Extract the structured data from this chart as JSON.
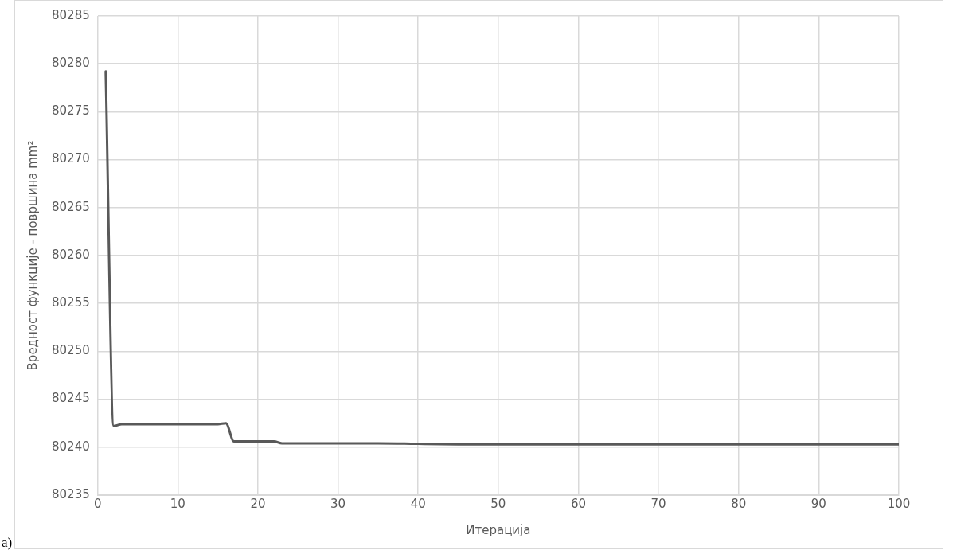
{
  "chart_data": {
    "type": "line",
    "xlabel": "Итерација",
    "ylabel": "Вредност функције - површина mm²",
    "annotations": [
      "a)"
    ],
    "x": [
      1,
      2,
      3,
      15,
      16,
      17,
      18,
      22,
      23,
      35,
      45,
      100
    ],
    "series": [
      {
        "color": "#595959",
        "values": [
          80279.2,
          80242.2,
          80242.4,
          80242.4,
          80242.5,
          80240.6,
          80240.6,
          80240.6,
          80240.4,
          80240.4,
          80240.3,
          80240.3
        ]
      }
    ],
    "xlim": [
      0,
      100
    ],
    "xticks": [
      0,
      10,
      20,
      30,
      40,
      50,
      60,
      70,
      80,
      90,
      100
    ],
    "ylim": [
      80235,
      80285
    ],
    "yticks": [
      80235,
      80240,
      80245,
      80250,
      80255,
      80260,
      80265,
      80270,
      80275,
      80280,
      80285
    ],
    "grid": true,
    "legend": false,
    "marker": "none",
    "line_style": "solid"
  }
}
